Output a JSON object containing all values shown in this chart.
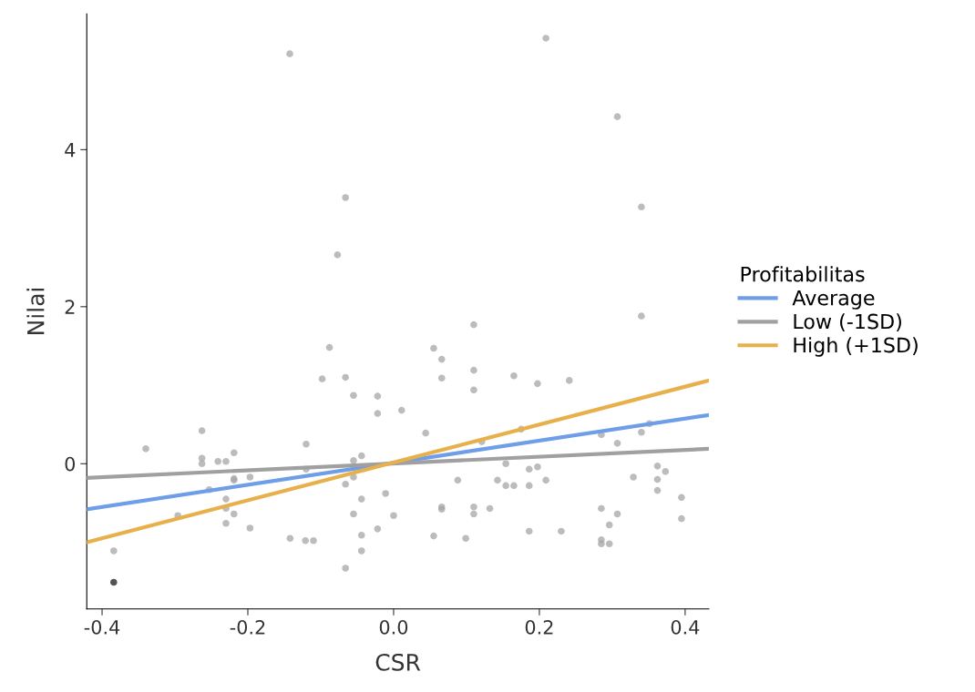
{
  "chart_data": {
    "type": "scatter",
    "xlabel": "CSR",
    "ylabel": "Nilai",
    "legend_title": "Profitabilitas",
    "legend": "right",
    "grid": false,
    "xlim": [
      -0.421,
      0.4325
    ],
    "ylim": [
      -1.85,
      5.73
    ],
    "xticks": [
      {
        "value": -0.4,
        "label": "-0.4"
      },
      {
        "value": -0.2,
        "label": "-0.2"
      },
      {
        "value": 0.0,
        "label": "0.0"
      },
      {
        "value": 0.2,
        "label": "0.2"
      },
      {
        "value": 0.4,
        "label": "0.4"
      }
    ],
    "yticks": [
      0,
      2,
      4
    ],
    "series": [
      {
        "marker": "circle",
        "color": "#a6a6a6",
        "x": [
          -0.34,
          -0.263,
          -0.263,
          -0.263,
          -0.241,
          -0.23,
          -0.219,
          -0.219,
          -0.219,
          -0.197,
          -0.253,
          -0.23,
          -0.23,
          -0.219,
          -0.296,
          -0.23,
          -0.197,
          -0.384,
          -0.12,
          -0.12,
          -0.142,
          -0.121,
          -0.11,
          -0.022,
          0.011,
          -0.055,
          -0.044,
          -0.055,
          -0.066,
          -0.044,
          -0.011,
          -0.055,
          0.0,
          -0.022,
          -0.044,
          -0.044,
          -0.066,
          -0.066,
          -0.077,
          -0.088,
          -0.098,
          -0.066,
          -0.055,
          -0.022,
          -0.1425,
          0.209,
          0.307,
          0.34,
          0.34,
          0.11,
          0.055,
          0.066,
          0.066,
          0.11,
          0.11,
          0.165,
          0.1975,
          0.241,
          0.044,
          0.121,
          0.175,
          0.285,
          0.307,
          0.34,
          0.351,
          0.154,
          0.186,
          0.1975,
          0.088,
          0.1425,
          0.154,
          0.165,
          0.186,
          0.209,
          0.329,
          0.362,
          0.373,
          0.362,
          0.362,
          0.395,
          0.395,
          0.066,
          0.066,
          0.11,
          0.11,
          0.132,
          0.055,
          0.099,
          0.186,
          0.23,
          0.285,
          0.307,
          0.296,
          0.285,
          0.285,
          0.296
        ],
        "values": [
          0.19,
          0.42,
          0.07,
          0.0,
          0.03,
          0.03,
          0.14,
          -0.21,
          -0.19,
          -0.17,
          -0.33,
          -0.45,
          -0.57,
          -0.64,
          -0.66,
          -0.76,
          -0.82,
          -1.11,
          0.25,
          -0.07,
          -0.95,
          -0.98,
          -0.98,
          0.64,
          0.68,
          0.04,
          0.1,
          -0.17,
          -0.26,
          -0.45,
          -0.38,
          -0.64,
          -0.66,
          -0.83,
          -0.91,
          -1.11,
          -1.33,
          3.39,
          2.66,
          1.48,
          1.08,
          1.1,
          0.87,
          0.86,
          5.22,
          5.42,
          4.42,
          3.27,
          1.88,
          1.77,
          1.47,
          1.33,
          1.09,
          1.19,
          0.94,
          1.12,
          1.02,
          1.06,
          0.39,
          0.28,
          0.44,
          0.37,
          0.26,
          0.4,
          0.51,
          0.0,
          -0.07,
          -0.04,
          -0.21,
          -0.21,
          -0.28,
          -0.28,
          -0.28,
          -0.21,
          -0.17,
          -0.03,
          -0.1,
          -0.2,
          -0.34,
          -0.43,
          -0.7,
          -0.55,
          -0.58,
          -0.55,
          -0.64,
          -0.57,
          -0.92,
          -0.95,
          -0.86,
          -0.86,
          -0.57,
          -0.64,
          -0.78,
          -0.97,
          -1.02,
          -1.02
        ]
      },
      {
        "marker": "circle",
        "color": "#1a1a1a",
        "x": [
          -0.384
        ],
        "values": [
          -1.51
        ]
      },
      {
        "type": "line",
        "name": "Average",
        "color": "#6f9ee8",
        "x": [
          -0.421,
          0.4325
        ],
        "values": [
          -0.58,
          0.62
        ]
      },
      {
        "type": "line",
        "name": "Low (-1SD)",
        "color": "#a0a0a0",
        "x": [
          -0.421,
          0.4325
        ],
        "values": [
          -0.18,
          0.19
        ]
      },
      {
        "type": "line",
        "name": "High (+1SD)",
        "color": "#e8b04a",
        "x": [
          -0.421,
          0.4325
        ],
        "values": [
          -1.0,
          1.06
        ]
      }
    ]
  }
}
